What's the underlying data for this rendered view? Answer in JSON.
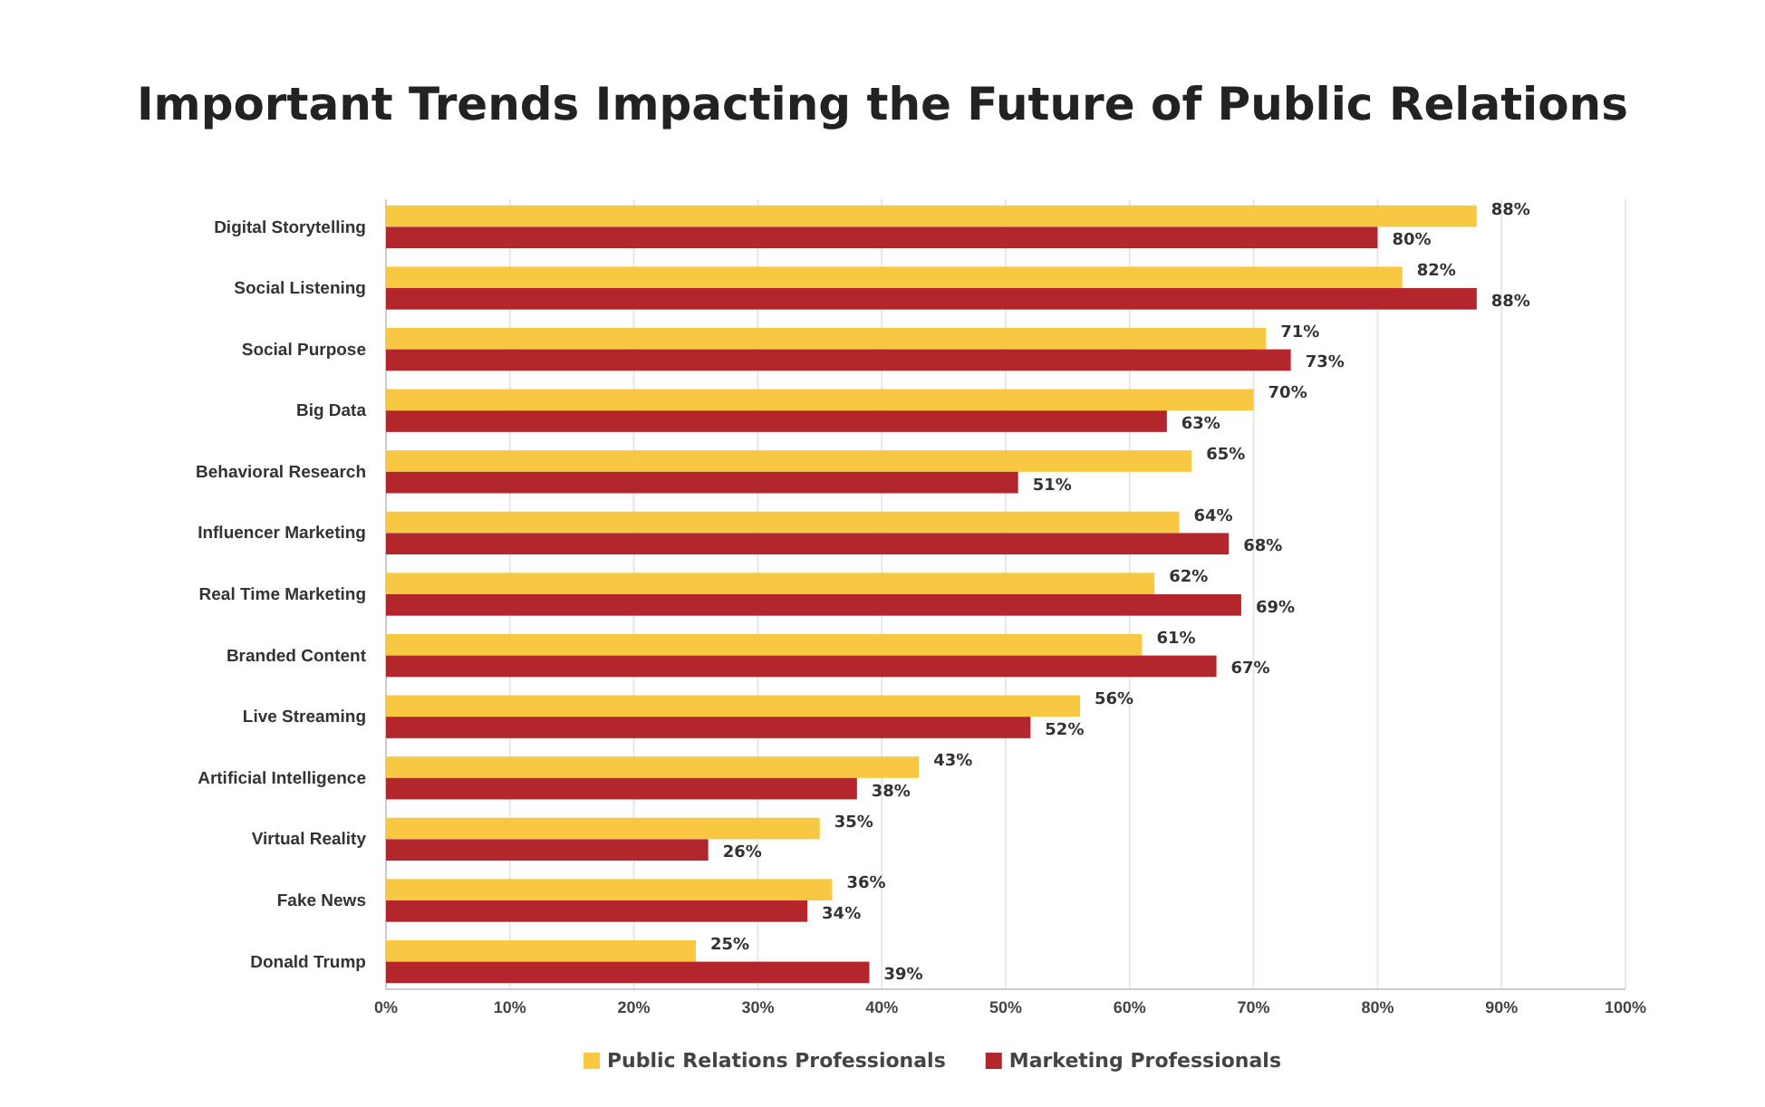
{
  "chart_data": {
    "type": "bar",
    "orientation": "horizontal",
    "title": "Important Trends Impacting the Future of Public Relations",
    "categories": [
      "Digital Storytelling",
      "Social Listening",
      "Social Purpose",
      "Big Data",
      "Behavioral Research",
      "Influencer Marketing",
      "Real Time Marketing",
      "Branded Content",
      "Live Streaming",
      "Artificial Intelligence",
      "Virtual Reality",
      "Fake News",
      "Donald Trump"
    ],
    "series": [
      {
        "name": "Public Relations Professionals",
        "color": "#f9c843",
        "values": [
          88,
          82,
          71,
          70,
          65,
          64,
          62,
          61,
          56,
          43,
          35,
          36,
          25
        ],
        "value_labels": [
          "88%",
          "82%",
          "71%",
          "70%",
          "65%",
          "64%",
          "62%",
          "61%",
          "56%",
          "43%",
          "35%",
          "36%",
          "25%"
        ]
      },
      {
        "name": "Marketing Professionals",
        "color": "#b3262c",
        "values": [
          80,
          88,
          73,
          63,
          51,
          68,
          69,
          67,
          52,
          38,
          26,
          34,
          39
        ],
        "value_labels": [
          "80%",
          "88%",
          "73%",
          "63%",
          "51%",
          "68%",
          "69%",
          "67%",
          "52%",
          "38%",
          "26%",
          "34%",
          "39%"
        ]
      }
    ],
    "xlim": [
      0,
      100
    ],
    "xticks": [
      {
        "value": 0,
        "label": "0%"
      },
      {
        "value": 10,
        "label": "10%"
      },
      {
        "value": 20,
        "label": "20%"
      },
      {
        "value": 30,
        "label": "30%"
      },
      {
        "value": 40,
        "label": "40%"
      },
      {
        "value": 50,
        "label": "50%"
      },
      {
        "value": 60,
        "label": "60%"
      },
      {
        "value": 70,
        "label": "70%"
      },
      {
        "value": 80,
        "label": "80%"
      },
      {
        "value": 90,
        "label": "90%"
      },
      {
        "value": 100,
        "label": "100%"
      }
    ],
    "grid": "x",
    "legend": "bottom"
  }
}
